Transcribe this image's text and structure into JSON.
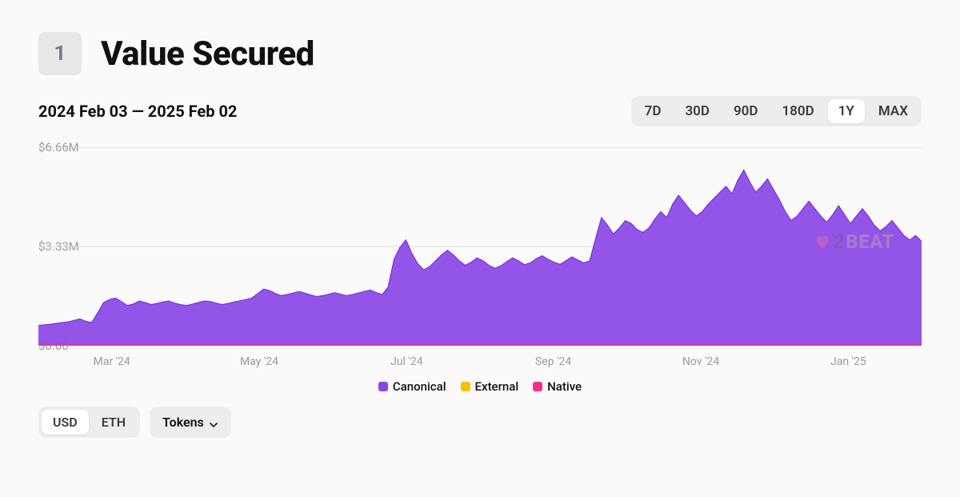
{
  "header": {
    "rank": "1",
    "title": "Value Secured"
  },
  "date_range": "2024 Feb 03 — 2025 Feb 02",
  "range_selector": {
    "options": [
      "7D",
      "30D",
      "90D",
      "180D",
      "1Y",
      "MAX"
    ],
    "active_index": 4
  },
  "chart": {
    "type": "area",
    "ylim": [
      0,
      6660000
    ],
    "y_ticks": [
      {
        "value": 0,
        "label": "$0.00"
      },
      {
        "value": 3330000,
        "label": "$3.33M"
      },
      {
        "value": 6660000,
        "label": "$6.66M"
      }
    ],
    "x_ticks": [
      "Mar '24",
      "May '24",
      "Jul '24",
      "Sep '24",
      "Nov '24",
      "Jan '25"
    ],
    "x_tick_positions": [
      0.083,
      0.25,
      0.417,
      0.583,
      0.75,
      0.917
    ],
    "area_color": "#8a46e6",
    "area_stroke": "#7a34da",
    "baseline_color": "#ff2d87",
    "grid_color": "#d7d7dd",
    "background_color": "#fafafa",
    "values": [
      680000,
      700000,
      720000,
      750000,
      780000,
      800000,
      850000,
      900000,
      820000,
      780000,
      1100000,
      1450000,
      1550000,
      1600000,
      1480000,
      1350000,
      1400000,
      1500000,
      1450000,
      1380000,
      1420000,
      1470000,
      1500000,
      1430000,
      1380000,
      1350000,
      1400000,
      1450000,
      1500000,
      1480000,
      1430000,
      1380000,
      1420000,
      1470000,
      1510000,
      1550000,
      1600000,
      1750000,
      1900000,
      1850000,
      1750000,
      1680000,
      1720000,
      1770000,
      1820000,
      1760000,
      1700000,
      1650000,
      1680000,
      1730000,
      1780000,
      1730000,
      1680000,
      1720000,
      1770000,
      1820000,
      1870000,
      1780000,
      1720000,
      1970000,
      2900000,
      3300000,
      3550000,
      3100000,
      2750000,
      2550000,
      2650000,
      2850000,
      3050000,
      3200000,
      3050000,
      2850000,
      2700000,
      2800000,
      2950000,
      2850000,
      2700000,
      2600000,
      2680000,
      2820000,
      2950000,
      2850000,
      2720000,
      2780000,
      2920000,
      3020000,
      2900000,
      2800000,
      2730000,
      2850000,
      2980000,
      2880000,
      2780000,
      2850000,
      3600000,
      4300000,
      4050000,
      3750000,
      3950000,
      4200000,
      4100000,
      3900000,
      3800000,
      3950000,
      4250000,
      4500000,
      4300000,
      4750000,
      5050000,
      4800000,
      4550000,
      4350000,
      4500000,
      4750000,
      4950000,
      5150000,
      5350000,
      5100000,
      5550000,
      5900000,
      5500000,
      5150000,
      5350000,
      5600000,
      5250000,
      4900000,
      4500000,
      4200000,
      4350000,
      4600000,
      4850000,
      4600000,
      4350000,
      4150000,
      4400000,
      4700000,
      4400000,
      4100000,
      4350000,
      4600000,
      4350000,
      4050000,
      3850000,
      4000000,
      4200000,
      3950000,
      3700000,
      3550000,
      3700000,
      3500000
    ]
  },
  "legend": {
    "items": [
      {
        "label": "Canonical",
        "color": "#8a46e6"
      },
      {
        "label": "External",
        "color": "#f5c200"
      },
      {
        "label": "Native",
        "color": "#ff2d87"
      }
    ]
  },
  "currency_selector": {
    "options": [
      "USD",
      "ETH"
    ],
    "active_index": 0
  },
  "tokens_button": {
    "label": "Tokens"
  },
  "watermark": {
    "digit": "2",
    "text": "BEAT"
  }
}
